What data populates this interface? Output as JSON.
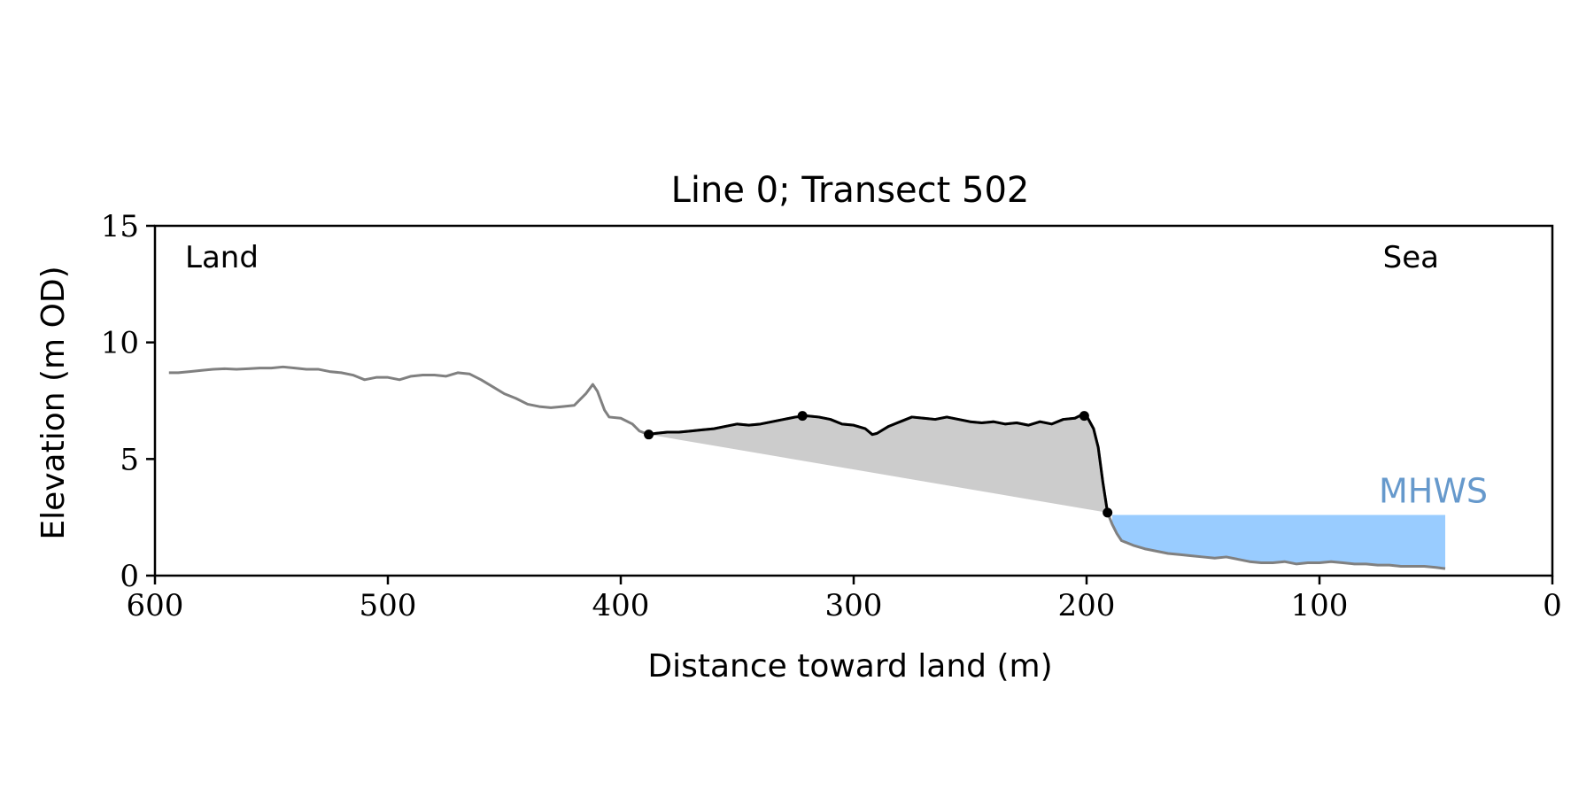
{
  "chart_data": {
    "type": "line",
    "title": "Line 0; Transect 502",
    "xlabel": "Distance toward land (m)",
    "ylabel": "Elevation (m OD)",
    "xlim": [
      600,
      0
    ],
    "ylim": [
      0,
      15
    ],
    "x_direction": "reversed",
    "xticks": [
      600,
      500,
      400,
      300,
      200,
      100,
      0
    ],
    "yticks": [
      0,
      5,
      10,
      15
    ],
    "grid": false,
    "annotations": [
      {
        "text": "Land",
        "position": "top-left"
      },
      {
        "text": "Sea",
        "position": "top-right"
      },
      {
        "text": "MHWS",
        "position": "above water fill",
        "color": "#6699cc"
      }
    ],
    "colors": {
      "profile": "#808080",
      "dune_profile": "#000000",
      "dune_fill": "#cccccc",
      "water_fill": "#99ccff",
      "mhws_text": "#6699cc"
    },
    "series": [
      {
        "role": "full profile",
        "x": [
          594,
          590,
          585,
          580,
          575,
          570,
          565,
          560,
          555,
          550,
          545,
          540,
          535,
          530,
          525,
          520,
          515,
          510,
          505,
          500,
          495,
          490,
          485,
          480,
          475,
          470,
          465,
          460,
          455,
          450,
          445,
          440,
          435,
          430,
          425,
          420,
          415,
          412,
          410,
          407,
          405,
          400,
          395,
          392,
          388,
          385,
          380,
          375,
          370,
          365,
          360,
          355,
          350,
          345,
          340,
          335,
          330,
          325,
          320,
          315,
          310,
          305,
          300,
          295,
          292,
          290,
          285,
          280,
          275,
          270,
          265,
          260,
          255,
          250,
          245,
          240,
          235,
          230,
          225,
          220,
          215,
          210,
          205,
          202,
          200,
          197,
          195,
          193,
          191,
          189,
          187,
          185,
          180,
          175,
          170,
          165,
          160,
          155,
          150,
          145,
          140,
          135,
          130,
          125,
          120,
          115,
          110,
          105,
          100,
          95,
          90,
          85,
          80,
          75,
          70,
          65,
          60,
          55,
          50,
          46
        ],
        "y": [
          8.7,
          8.7,
          8.75,
          8.8,
          8.85,
          8.87,
          8.85,
          8.87,
          8.9,
          8.9,
          8.95,
          8.9,
          8.85,
          8.85,
          8.75,
          8.7,
          8.6,
          8.4,
          8.5,
          8.5,
          8.4,
          8.55,
          8.6,
          8.6,
          8.55,
          8.7,
          8.65,
          8.4,
          8.1,
          7.8,
          7.6,
          7.35,
          7.25,
          7.2,
          7.25,
          7.3,
          7.8,
          8.2,
          7.9,
          7.1,
          6.8,
          6.75,
          6.5,
          6.2,
          6.05,
          6.1,
          6.15,
          6.15,
          6.2,
          6.25,
          6.3,
          6.4,
          6.5,
          6.45,
          6.5,
          6.6,
          6.7,
          6.8,
          6.85,
          6.8,
          6.7,
          6.5,
          6.45,
          6.3,
          6.05,
          6.1,
          6.4,
          6.6,
          6.8,
          6.75,
          6.7,
          6.8,
          6.7,
          6.6,
          6.55,
          6.6,
          6.5,
          6.55,
          6.45,
          6.6,
          6.5,
          6.7,
          6.75,
          6.9,
          6.85,
          6.3,
          5.5,
          4.0,
          2.7,
          2.2,
          1.8,
          1.5,
          1.3,
          1.15,
          1.05,
          0.95,
          0.9,
          0.85,
          0.8,
          0.75,
          0.8,
          0.7,
          0.6,
          0.55,
          0.55,
          0.6,
          0.5,
          0.55,
          0.55,
          0.6,
          0.55,
          0.5,
          0.5,
          0.45,
          0.45,
          0.4,
          0.4,
          0.4,
          0.35,
          0.3
        ]
      },
      {
        "role": "dune section",
        "x": [
          388,
          385,
          380,
          375,
          370,
          365,
          360,
          355,
          350,
          345,
          340,
          335,
          330,
          325,
          320,
          315,
          310,
          305,
          300,
          295,
          292,
          290,
          285,
          280,
          275,
          270,
          265,
          260,
          255,
          250,
          245,
          240,
          235,
          230,
          225,
          220,
          215,
          210,
          205,
          202,
          200,
          197,
          195,
          193,
          191
        ],
        "y": [
          6.05,
          6.1,
          6.15,
          6.15,
          6.2,
          6.25,
          6.3,
          6.4,
          6.5,
          6.45,
          6.5,
          6.6,
          6.7,
          6.8,
          6.85,
          6.8,
          6.7,
          6.5,
          6.45,
          6.3,
          6.05,
          6.1,
          6.4,
          6.6,
          6.8,
          6.75,
          6.7,
          6.8,
          6.7,
          6.6,
          6.55,
          6.6,
          6.5,
          6.55,
          6.45,
          6.6,
          6.5,
          6.7,
          6.75,
          6.9,
          6.85,
          6.3,
          5.5,
          4.0,
          2.7
        ]
      }
    ],
    "markers": [
      {
        "x": 388,
        "y": 6.05
      },
      {
        "x": 322,
        "y": 6.85
      },
      {
        "x": 201,
        "y": 6.85
      },
      {
        "x": 191,
        "y": 2.7
      }
    ],
    "regions": [
      {
        "role": "dune volume",
        "polygon_x": [
          388,
          385,
          380,
          375,
          370,
          365,
          360,
          355,
          350,
          345,
          340,
          335,
          330,
          325,
          320,
          315,
          310,
          305,
          300,
          295,
          292,
          290,
          285,
          280,
          275,
          270,
          265,
          260,
          255,
          250,
          245,
          240,
          235,
          230,
          225,
          220,
          215,
          210,
          205,
          202,
          200,
          197,
          195,
          193,
          191
        ],
        "polygon_y": [
          6.05,
          6.1,
          6.15,
          6.15,
          6.2,
          6.25,
          6.3,
          6.4,
          6.5,
          6.45,
          6.5,
          6.6,
          6.7,
          6.8,
          6.85,
          6.8,
          6.7,
          6.5,
          6.45,
          6.3,
          6.05,
          6.1,
          6.4,
          6.6,
          6.8,
          6.75,
          6.7,
          6.8,
          6.7,
          6.6,
          6.55,
          6.6,
          6.5,
          6.55,
          6.45,
          6.6,
          6.5,
          6.7,
          6.75,
          6.9,
          6.85,
          6.3,
          5.5,
          4.0,
          2.7
        ]
      },
      {
        "role": "water below MHWS",
        "mhws_level": 2.6,
        "x_from": 189,
        "x_to": 46
      }
    ]
  }
}
